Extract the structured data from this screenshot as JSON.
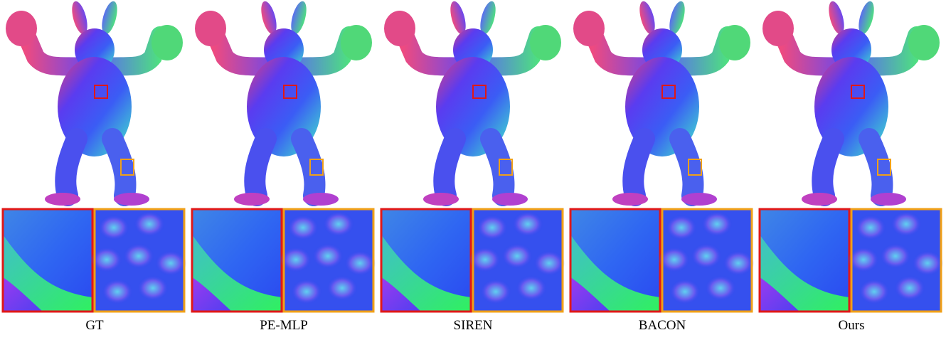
{
  "figure": {
    "columns": [
      {
        "label": "GT"
      },
      {
        "label": "PE-MLP"
      },
      {
        "label": "SIREN"
      },
      {
        "label": "BACON"
      },
      {
        "label": "Ours"
      }
    ]
  }
}
